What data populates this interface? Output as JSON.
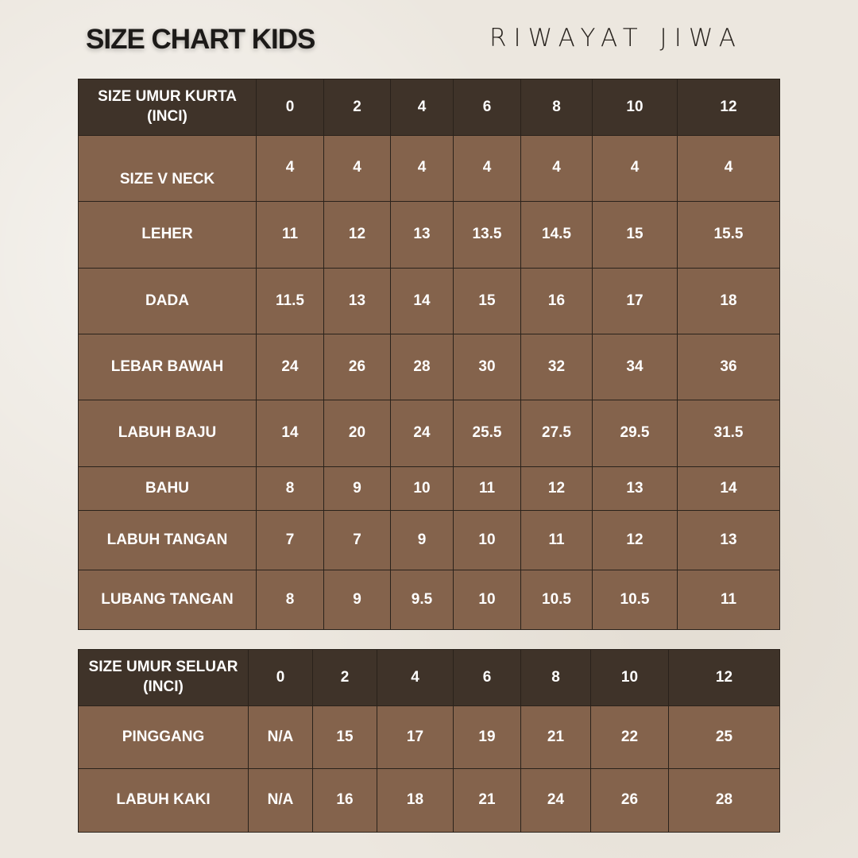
{
  "title": "SIZE CHART KIDS",
  "brand": "RIWAYAT JIWA",
  "colors": {
    "header_bg": "#3f3329",
    "row_bg": "#84634c",
    "border": "#2a221b",
    "page_bg": "#ece7df"
  },
  "kurta": {
    "header": [
      "SIZE UMUR KURTA (INCI)",
      "0",
      "2",
      "4",
      "6",
      "8",
      "10",
      "12"
    ],
    "rows": [
      [
        "SIZE V NECK",
        "4",
        "4",
        "4",
        "4",
        "4",
        "4",
        "4"
      ],
      [
        "LEHER",
        "11",
        "12",
        "13",
        "13.5",
        "14.5",
        "15",
        "15.5"
      ],
      [
        "DADA",
        "11.5",
        "13",
        "14",
        "15",
        "16",
        "17",
        "18"
      ],
      [
        "LEBAR BAWAH",
        "24",
        "26",
        "28",
        "30",
        "32",
        "34",
        "36"
      ],
      [
        "LABUH BAJU",
        "14",
        "20",
        "24",
        "25.5",
        "27.5",
        "29.5",
        "31.5"
      ],
      [
        "BAHU",
        "8",
        "9",
        "10",
        "11",
        "12",
        "13",
        "14"
      ],
      [
        "LABUH TANGAN",
        "7",
        "7",
        "9",
        "10",
        "11",
        "12",
        "13"
      ],
      [
        "LUBANG TANGAN",
        "8",
        "9",
        "9.5",
        "10",
        "10.5",
        "10.5",
        "11"
      ]
    ]
  },
  "seluar": {
    "header": [
      "SIZE UMUR SELUAR (INCI)",
      "0",
      "2",
      "4",
      "6",
      "8",
      "10",
      "12"
    ],
    "rows": [
      [
        "PINGGANG",
        "N/A",
        "15",
        "17",
        "19",
        "21",
        "22",
        "25"
      ],
      [
        "LABUH KAKI",
        "N/A",
        "16",
        "18",
        "21",
        "24",
        "26",
        "28"
      ]
    ]
  }
}
